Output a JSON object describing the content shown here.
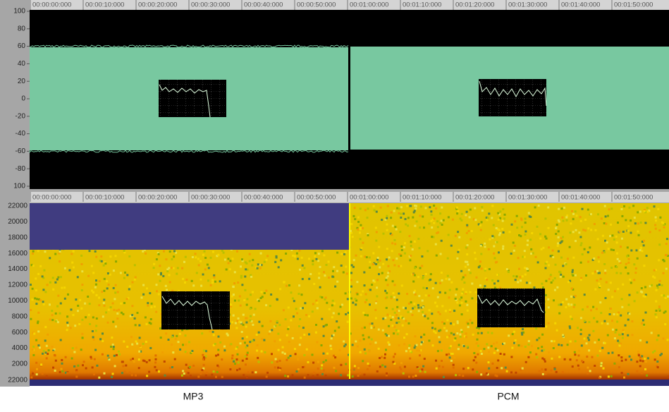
{
  "timeline": {
    "labels": [
      "00:00:00:000",
      "00:00:10:000",
      "00:00:20:000",
      "00:00:30:000",
      "00:00:40:000",
      "00:00:50:000",
      "00:01:00:000",
      "00:01:10:000",
      "00:01:20:000",
      "00:01:30:000",
      "00:01:40:000",
      "00:01:50:000"
    ]
  },
  "waveform": {
    "axis_labels": [
      "100",
      "80",
      "60",
      "40",
      "20",
      "0",
      "-20",
      "-40",
      "-60",
      "-80",
      "100"
    ]
  },
  "spectrogram": {
    "axis_labels": [
      "22000",
      "20000",
      "18000",
      "16000",
      "14000",
      "12000",
      "10000",
      "8000",
      "6000",
      "4000",
      "2000",
      "22000"
    ]
  },
  "tracks": [
    "MP3",
    "PCM"
  ]
}
